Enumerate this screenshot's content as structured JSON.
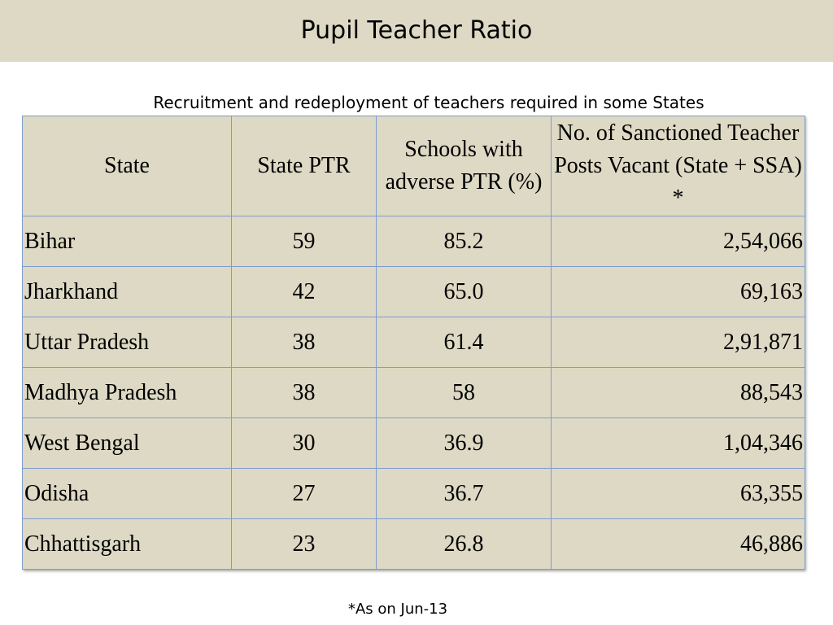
{
  "title": "Pupil Teacher Ratio",
  "subtitle": "Recruitment and redeployment of teachers required in some States",
  "table": {
    "headers": [
      "State",
      "State PTR",
      "Schools with adverse PTR (%)",
      "No. of Sanctioned Teacher Posts  Vacant (State + SSA) *"
    ],
    "rows": [
      [
        "Bihar",
        "59",
        "85.2",
        "2,54,066"
      ],
      [
        "Jharkhand",
        "42",
        "65.0",
        "69,163"
      ],
      [
        "Uttar Pradesh",
        "38",
        "61.4",
        "2,91,871"
      ],
      [
        "Madhya Pradesh",
        "38",
        "58",
        "88,543"
      ],
      [
        "West Bengal",
        "30",
        "36.9",
        "1,04,346"
      ],
      [
        "Odisha",
        "27",
        "36.7",
        "63,355"
      ],
      [
        "Chhattisgarh",
        "23",
        "26.8",
        "46,886"
      ]
    ]
  },
  "footnote": "*As on Jun-13",
  "colors": {
    "title_band": "#ddd9c4",
    "table_fill": "#ddd9c4",
    "table_border": "#7f9ccf"
  }
}
